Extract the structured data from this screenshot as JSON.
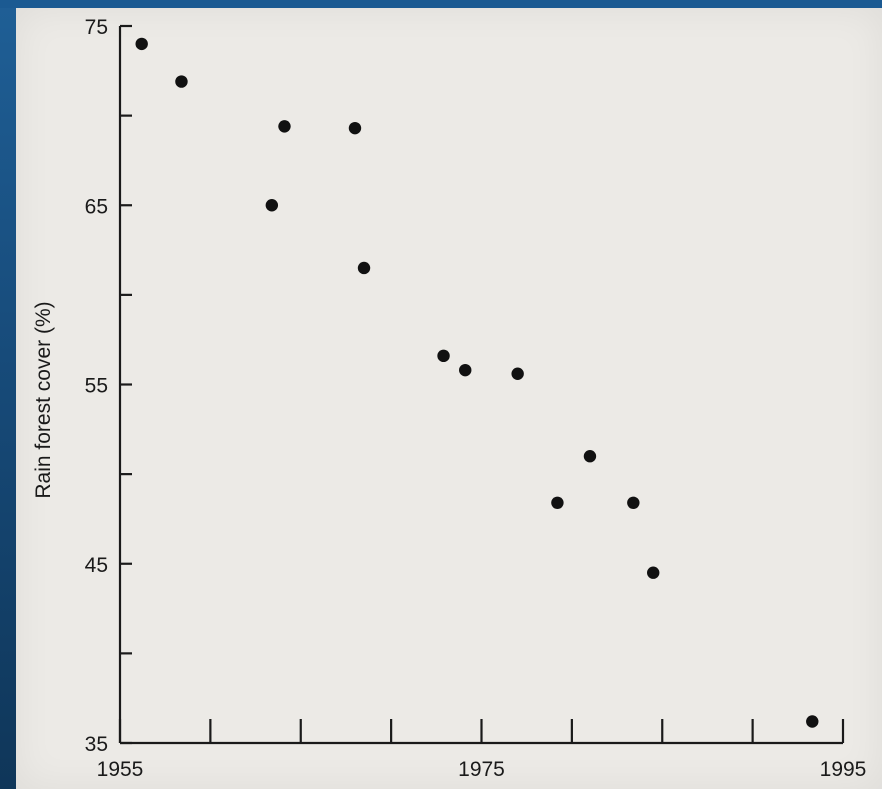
{
  "chart_data": {
    "type": "scatter",
    "title": "",
    "xlabel": "",
    "ylabel": "Rain forest cover (%)",
    "xlim": [
      1955,
      1995
    ],
    "ylim": [
      35,
      75
    ],
    "x_tick_labels": [
      "1955",
      "1975",
      "1995"
    ],
    "y_tick_labels": [
      "35",
      "45",
      "55",
      "65",
      "75"
    ],
    "grid": false,
    "series": [
      {
        "points": [
          {
            "x": 1956.2,
            "y": 74.0
          },
          {
            "x": 1958.4,
            "y": 71.9
          },
          {
            "x": 1963.4,
            "y": 65.0
          },
          {
            "x": 1964.1,
            "y": 69.4
          },
          {
            "x": 1968.0,
            "y": 69.3
          },
          {
            "x": 1968.5,
            "y": 61.5
          },
          {
            "x": 1972.9,
            "y": 56.6
          },
          {
            "x": 1974.1,
            "y": 55.8
          },
          {
            "x": 1977.0,
            "y": 55.6
          },
          {
            "x": 1979.2,
            "y": 48.4
          },
          {
            "x": 1981.0,
            "y": 51.0
          },
          {
            "x": 1983.4,
            "y": 48.4
          },
          {
            "x": 1984.5,
            "y": 44.5
          },
          {
            "x": 1993.3,
            "y": 36.2
          }
        ]
      }
    ],
    "colors": {
      "marker": "#111111",
      "axis": "#1a1a1a",
      "paper": "#eceae6"
    }
  }
}
